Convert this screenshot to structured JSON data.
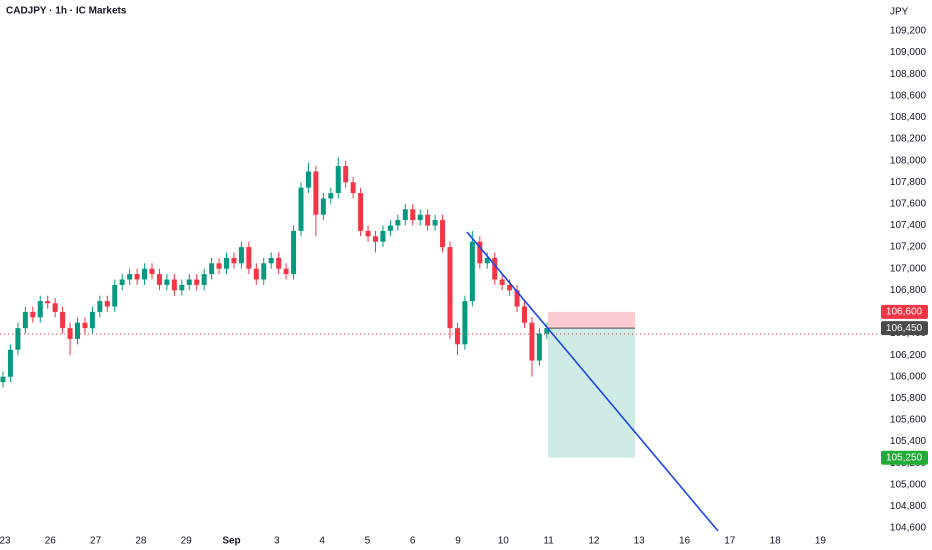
{
  "chart_data": {
    "type": "candlestick",
    "title": "CADJPY · 1h · IC Markets",
    "currency": "JPY",
    "ylim": [
      104600,
      109200
    ],
    "yticks": [
      {
        "value": 109200,
        "label": "109,200"
      },
      {
        "value": 109000,
        "label": "109,000"
      },
      {
        "value": 108800,
        "label": "108,800"
      },
      {
        "value": 108600,
        "label": "108,600"
      },
      {
        "value": 108400,
        "label": "108,400"
      },
      {
        "value": 108200,
        "label": "108,200"
      },
      {
        "value": 108000,
        "label": "108,000"
      },
      {
        "value": 107800,
        "label": "107,800"
      },
      {
        "value": 107600,
        "label": "107,600"
      },
      {
        "value": 107400,
        "label": "107,400"
      },
      {
        "value": 107200,
        "label": "107,200"
      },
      {
        "value": 107000,
        "label": "107,000"
      },
      {
        "value": 106800,
        "label": "106,800"
      },
      {
        "value": 106600,
        "label": "106,600"
      },
      {
        "value": 106400,
        "label": "106,400"
      },
      {
        "value": 106200,
        "label": "106,200"
      },
      {
        "value": 106000,
        "label": "106,000"
      },
      {
        "value": 105800,
        "label": "105,800"
      },
      {
        "value": 105600,
        "label": "105,600"
      },
      {
        "value": 105400,
        "label": "105,400"
      },
      {
        "value": 105200,
        "label": "105,200"
      },
      {
        "value": 105000,
        "label": "105,000"
      },
      {
        "value": 104800,
        "label": "104,800"
      },
      {
        "value": 104600,
        "label": "104,600"
      }
    ],
    "categories": [
      "23",
      "26",
      "27",
      "28",
      "29",
      "Sep",
      "3",
      "4",
      "5",
      "6",
      "9",
      "10",
      "11",
      "12",
      "13",
      "16",
      "17",
      "18",
      "19"
    ],
    "up_color": "#089981",
    "down_color": "#f23645",
    "candles": [
      [
        105950,
        106050,
        105900,
        106000
      ],
      [
        106000,
        106300,
        105950,
        106250
      ],
      [
        106250,
        106500,
        106200,
        106450
      ],
      [
        106450,
        106650,
        106400,
        106600
      ],
      [
        106600,
        106650,
        106500,
        106550
      ],
      [
        106550,
        106750,
        106500,
        106700
      ],
      [
        106700,
        106750,
        106630,
        106680
      ],
      [
        106680,
        106730,
        106550,
        106600
      ],
      [
        106600,
        106650,
        106400,
        106450
      ],
      [
        106450,
        106500,
        106200,
        106350
      ],
      [
        106350,
        106550,
        106300,
        106500
      ],
      [
        106500,
        106550,
        106400,
        106450
      ],
      [
        106450,
        106650,
        106400,
        106600
      ],
      [
        106600,
        106750,
        106550,
        106700
      ],
      [
        106700,
        106750,
        106600,
        106650
      ],
      [
        106650,
        106900,
        106600,
        106850
      ],
      [
        106850,
        106950,
        106800,
        106900
      ],
      [
        106900,
        107000,
        106850,
        106950
      ],
      [
        106950,
        107000,
        106850,
        106900
      ],
      [
        106900,
        107050,
        106850,
        107000
      ],
      [
        107000,
        107050,
        106900,
        106950
      ],
      [
        106950,
        107000,
        106800,
        106850
      ],
      [
        106850,
        106950,
        106800,
        106900
      ],
      [
        106900,
        106950,
        106750,
        106800
      ],
      [
        106800,
        106900,
        106750,
        106850
      ],
      [
        106850,
        106950,
        106800,
        106900
      ],
      [
        106900,
        106950,
        106800,
        106850
      ],
      [
        106850,
        107000,
        106800,
        106950
      ],
      [
        106950,
        107100,
        106900,
        107050
      ],
      [
        107050,
        107100,
        106950,
        107000
      ],
      [
        107000,
        107150,
        106950,
        107100
      ],
      [
        107100,
        107150,
        107000,
        107050
      ],
      [
        107050,
        107250,
        107000,
        107200
      ],
      [
        107200,
        107250,
        106950,
        107000
      ],
      [
        107000,
        107050,
        106850,
        106900
      ],
      [
        106900,
        107100,
        106850,
        107050
      ],
      [
        107050,
        107150,
        107000,
        107100
      ],
      [
        107100,
        107150,
        106950,
        107000
      ],
      [
        107000,
        107050,
        106900,
        106950
      ],
      [
        106950,
        107400,
        106900,
        107350
      ],
      [
        107350,
        107800,
        107300,
        107750
      ],
      [
        107750,
        107980,
        107700,
        107900
      ],
      [
        107900,
        107950,
        107300,
        107500
      ],
      [
        107500,
        107700,
        107450,
        107650
      ],
      [
        107650,
        107750,
        107600,
        107700
      ],
      [
        107700,
        108030,
        107650,
        107950
      ],
      [
        107950,
        108000,
        107750,
        107800
      ],
      [
        107800,
        107850,
        107650,
        107700
      ],
      [
        107700,
        107750,
        107300,
        107350
      ],
      [
        107350,
        107400,
        107250,
        107300
      ],
      [
        107300,
        107350,
        107150,
        107250
      ],
      [
        107250,
        107400,
        107200,
        107350
      ],
      [
        107350,
        107450,
        107300,
        107400
      ],
      [
        107400,
        107500,
        107350,
        107450
      ],
      [
        107450,
        107600,
        107400,
        107550
      ],
      [
        107550,
        107600,
        107400,
        107450
      ],
      [
        107450,
        107550,
        107400,
        107500
      ],
      [
        107500,
        107550,
        107350,
        107400
      ],
      [
        107400,
        107500,
        107350,
        107450
      ],
      [
        107450,
        107500,
        107150,
        107200
      ],
      [
        107200,
        107250,
        106350,
        106450
      ],
      [
        106450,
        106500,
        106200,
        106300
      ],
      [
        106300,
        106750,
        106250,
        106700
      ],
      [
        106700,
        107350,
        106650,
        107250
      ],
      [
        107250,
        107300,
        107000,
        107050
      ],
      [
        107050,
        107150,
        107000,
        107100
      ],
      [
        107100,
        107150,
        106850,
        106900
      ],
      [
        106900,
        106950,
        106800,
        106850
      ],
      [
        106850,
        106900,
        106750,
        106800
      ],
      [
        106800,
        106850,
        106600,
        106650
      ],
      [
        106650,
        106700,
        106450,
        106500
      ],
      [
        106500,
        106550,
        106000,
        106150
      ],
      [
        106150,
        106450,
        106100,
        106400
      ],
      [
        106400,
        106500,
        106350,
        106450
      ]
    ],
    "position": {
      "stop": {
        "value": 106600,
        "label": "106,600",
        "color": "#f23645"
      },
      "entry": {
        "value": 106450,
        "label": "106,450",
        "color": "#4a4a4a"
      },
      "target": {
        "value": 105250,
        "label": "105,250",
        "color": "#22ab36"
      }
    }
  }
}
